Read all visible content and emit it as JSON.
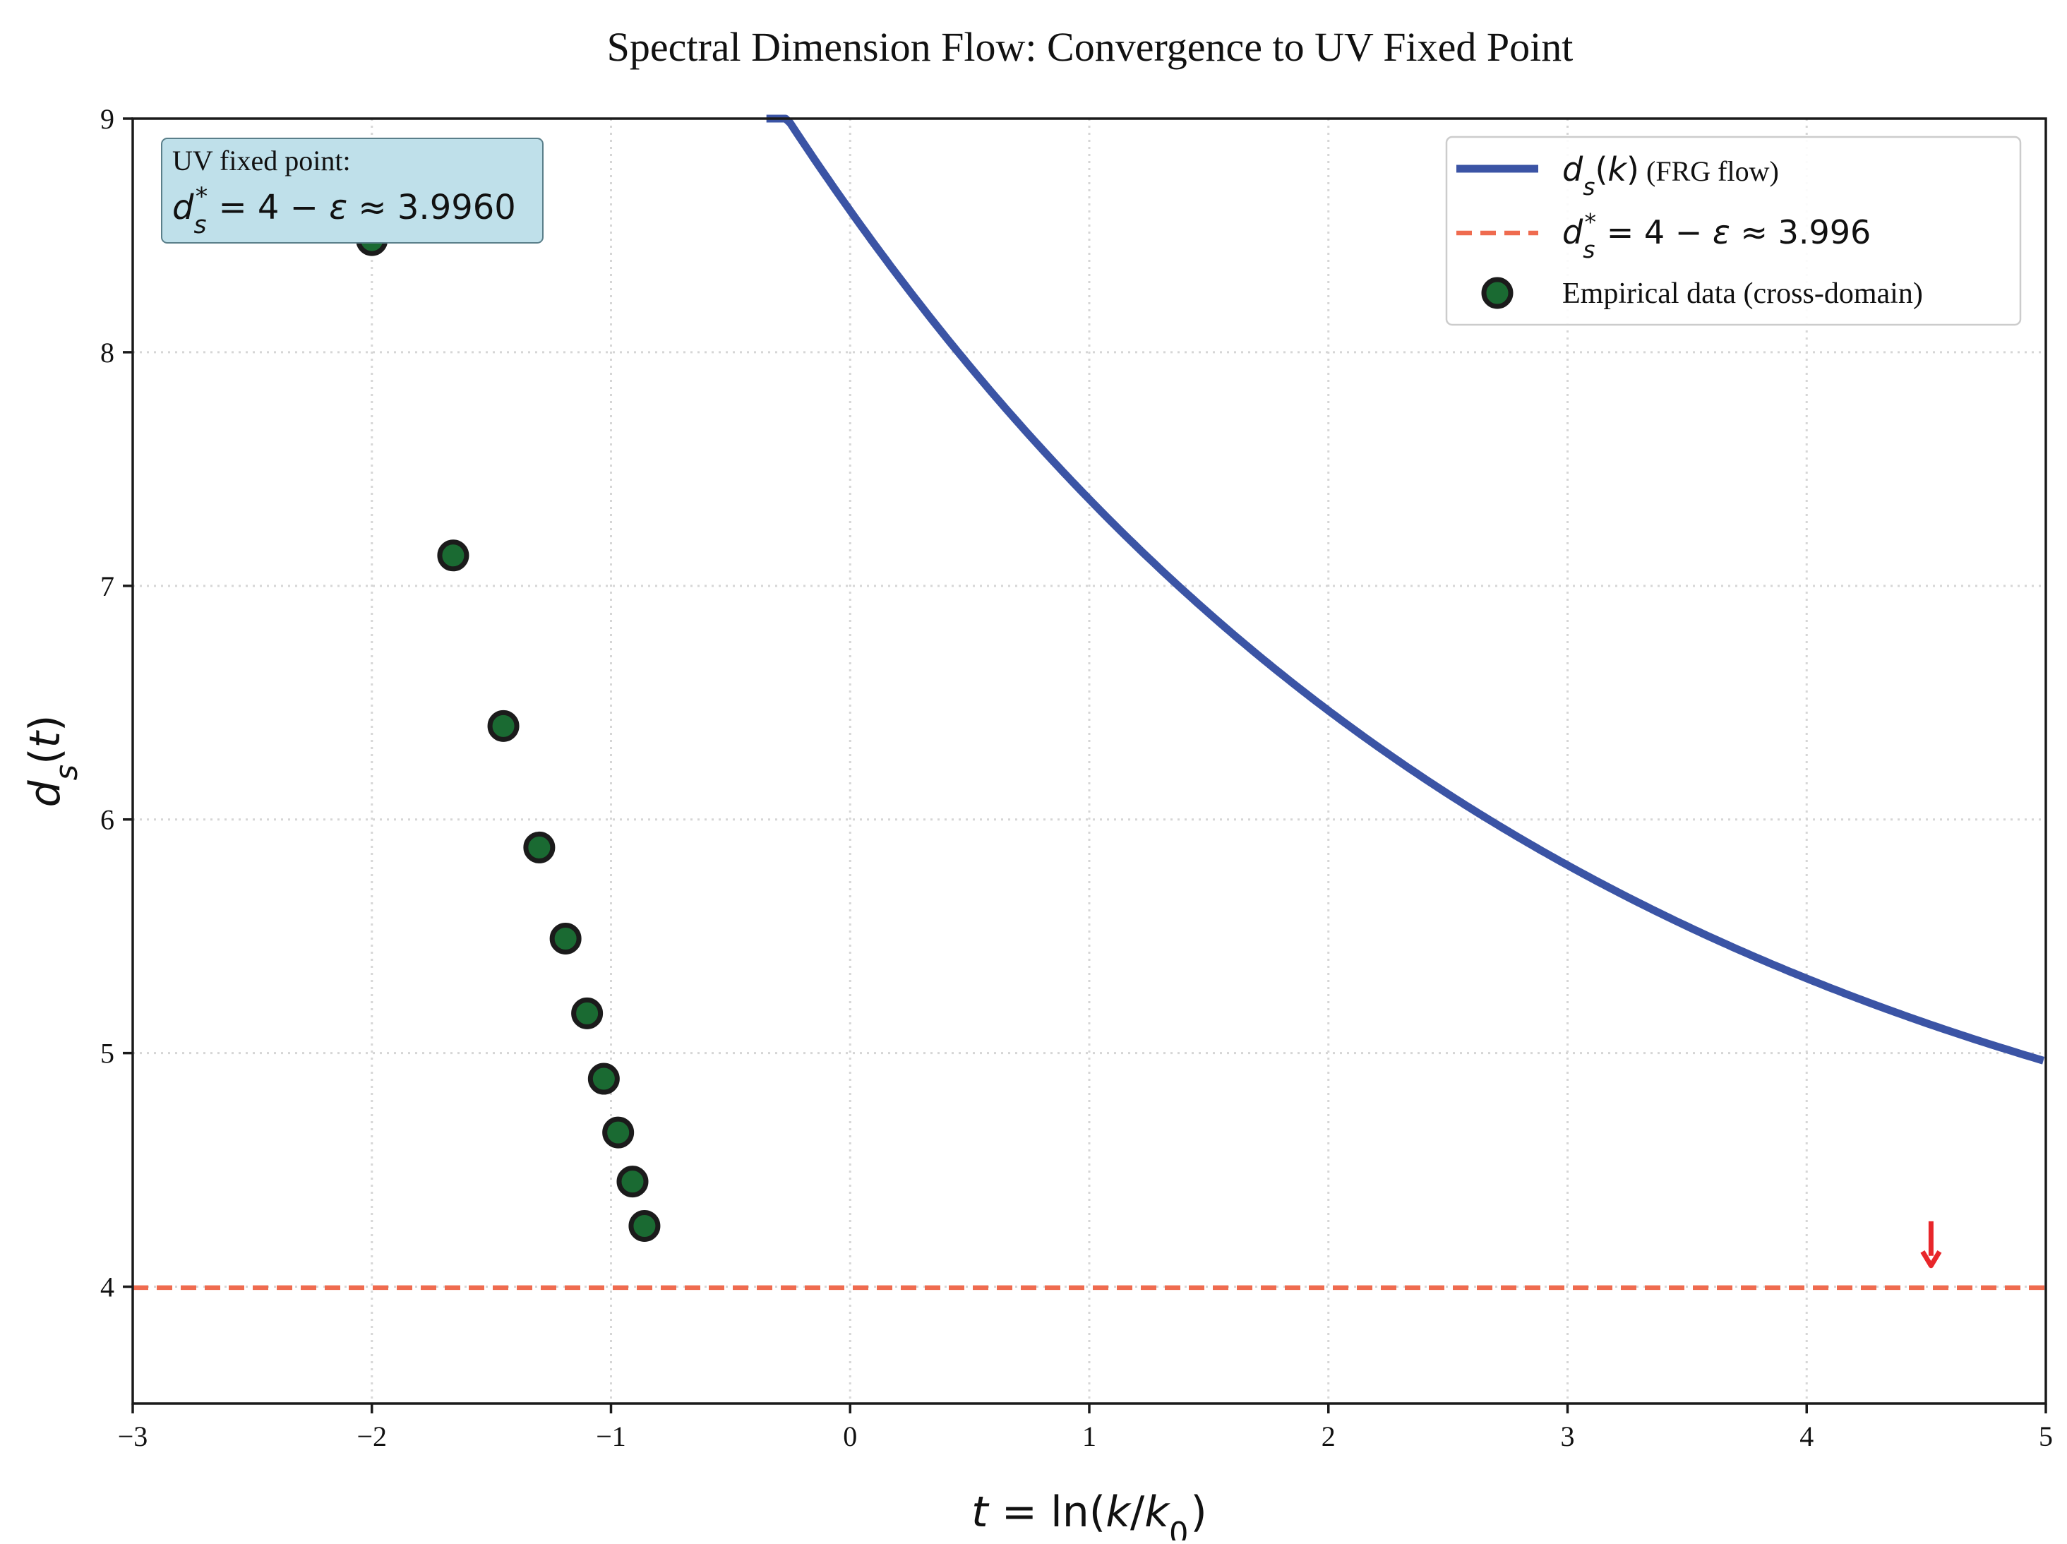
{
  "chart_data": {
    "type": "line",
    "title": "Spectral Dimension Flow: Convergence to UV Fixed Point",
    "xlabel": "t = ln(k/k₀)",
    "ylabel": "d_s(t)",
    "xlim": [
      -3,
      5
    ],
    "ylim": [
      3.5,
      9
    ],
    "xticks": [
      -3,
      -2,
      -1,
      0,
      1,
      2,
      3,
      4,
      5
    ],
    "yticks": [
      4,
      5,
      6,
      7,
      8,
      9
    ],
    "grid": true,
    "legend_position": "top-right",
    "series": [
      {
        "name": "d_s(k) (FRG flow)",
        "legend_math": "d_s(k)",
        "legend_text": "(FRG flow)",
        "kind": "line",
        "color": "#3b54a5",
        "model": {
          "fixed_point": 3.996,
          "amplitude": 4.61,
          "rate": 0.312
        },
        "x": [
          -0.35,
          0,
          0.5,
          1,
          1.5,
          2,
          2.5,
          3,
          3.5,
          4,
          4.5,
          5
        ],
        "y": [
          9.0,
          8.6,
          7.98,
          7.38,
          6.92,
          6.52,
          6.18,
          5.9,
          5.64,
          5.42,
          5.23,
          5.06
        ]
      },
      {
        "name": "d_s* = 4 − ε ≈ 3.996",
        "legend_math": "d_s* = 4 − ε ≈ 3.996",
        "kind": "hline",
        "color": "#ef6b4f",
        "y": 3.996
      },
      {
        "name": "Empirical data (cross-domain)",
        "kind": "scatter",
        "color": "#1a6a32",
        "edgecolor": "#1b1b1b",
        "x": [
          -2.0,
          -1.66,
          -1.45,
          -1.3,
          -1.19,
          -1.1,
          -1.03,
          -0.97,
          -0.91,
          -0.86
        ],
        "y": [
          8.48,
          7.13,
          6.4,
          5.88,
          5.49,
          5.17,
          4.89,
          4.66,
          4.45,
          4.26
        ]
      }
    ],
    "annotations": [
      {
        "label": "UV fixed point:",
        "math": "d_s* = 4 − ε ≈ 3.9960",
        "box_color": "#bfe0ea"
      },
      {
        "kind": "arrow",
        "color": "#e8262a",
        "x": 4.52,
        "y_from": 4.28,
        "y_to": 4.09
      }
    ]
  }
}
